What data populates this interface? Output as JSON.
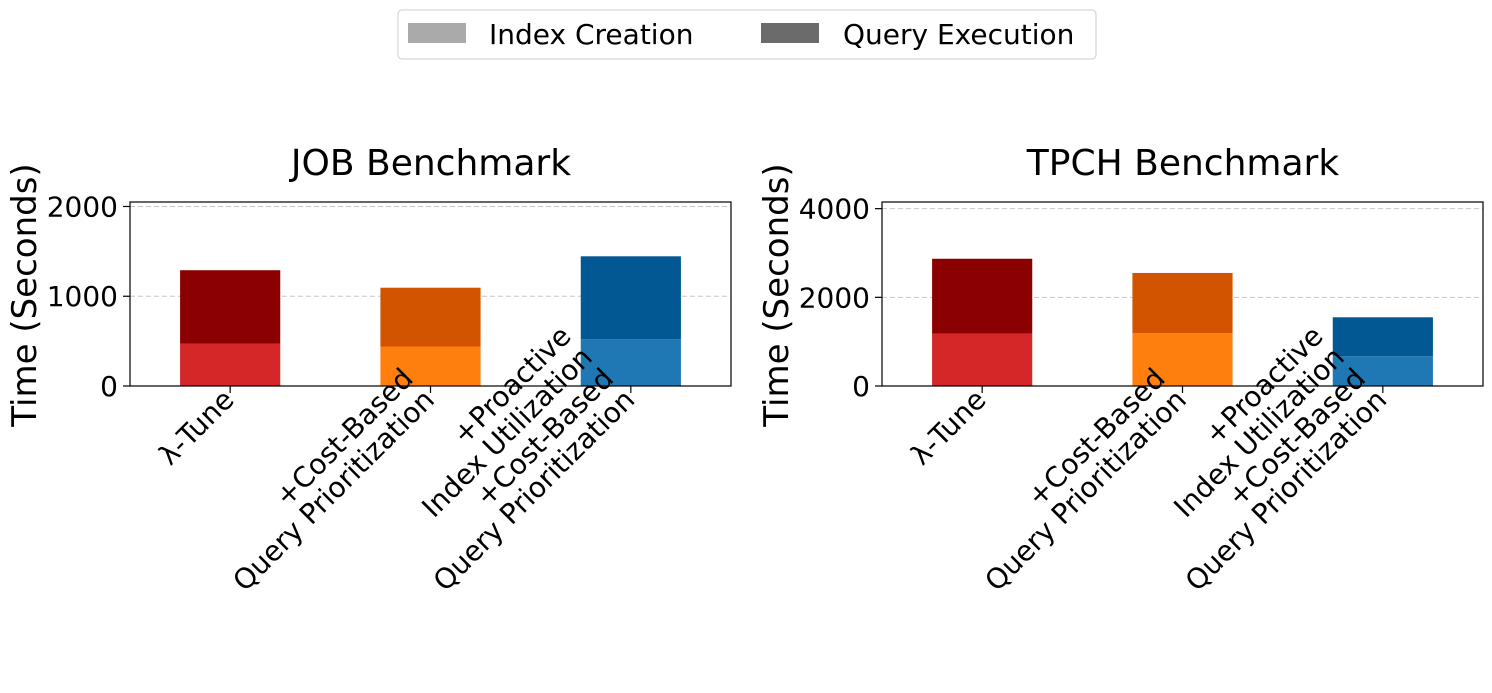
{
  "legend": {
    "placement": "top-center",
    "items": [
      {
        "label": "Index Creation",
        "color": "#aaaaaa"
      },
      {
        "label": "Query Execution",
        "color": "#6b6b6b"
      }
    ]
  },
  "chart_data": [
    {
      "type": "bar",
      "stacked": true,
      "title": "JOB Benchmark",
      "ylabel": "Time (Seconds)",
      "xlabel": "",
      "ylim": [
        0,
        2050
      ],
      "yticks": [
        0,
        1000,
        2000
      ],
      "grid": "y-dashed",
      "categories": [
        [
          "λ-Tune"
        ],
        [
          "+Cost-Based",
          "Query Prioritization"
        ],
        [
          "+Proactive",
          "Index Utilization",
          "+Cost-Based",
          "Query Prioritization"
        ]
      ],
      "series": [
        {
          "name": "Index Creation",
          "values": [
            470,
            440,
            520
          ]
        },
        {
          "name": "Query Execution",
          "values": [
            820,
            655,
            925
          ]
        }
      ],
      "bar_colors": [
        {
          "lower": "#d62728",
          "upper": "#8b0000"
        },
        {
          "lower": "#ff7f0e",
          "upper": "#d35400"
        },
        {
          "lower": "#1f77b4",
          "upper": "#025893"
        }
      ]
    },
    {
      "type": "bar",
      "stacked": true,
      "title": "TPCH Benchmark",
      "ylabel": "Time (Seconds)",
      "xlabel": "",
      "ylim": [
        0,
        4150
      ],
      "yticks": [
        0,
        2000,
        4000
      ],
      "grid": "y-dashed",
      "categories": [
        [
          "λ-Tune"
        ],
        [
          "+Cost-Based",
          "Query Prioritization"
        ],
        [
          "+Proactive",
          "Index Utilization",
          "+Cost-Based",
          "Query Prioritization"
        ]
      ],
      "series": [
        {
          "name": "Index Creation",
          "values": [
            1180,
            1190,
            670
          ]
        },
        {
          "name": "Query Execution",
          "values": [
            1690,
            1360,
            880
          ]
        }
      ],
      "bar_colors": [
        {
          "lower": "#d62728",
          "upper": "#8b0000"
        },
        {
          "lower": "#ff7f0e",
          "upper": "#d35400"
        },
        {
          "lower": "#1f77b4",
          "upper": "#025893"
        }
      ]
    }
  ]
}
